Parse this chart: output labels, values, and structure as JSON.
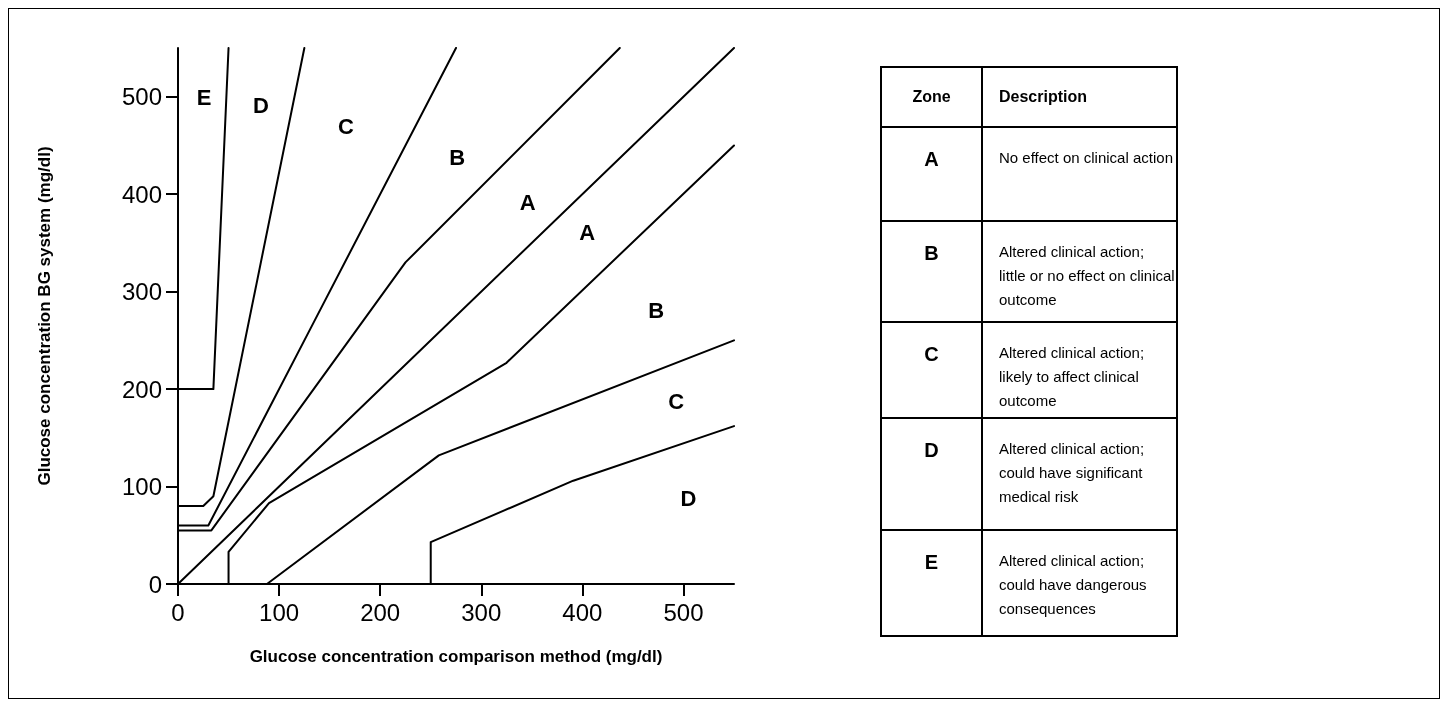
{
  "chart_data": [
    {
      "type": "line",
      "xlabel": "Glucose concentration comparison method (mg/dl)",
      "ylabel": "Glucose concentration BG system (mg/dl)",
      "xlim": [
        0,
        550
      ],
      "ylim": [
        0,
        550
      ],
      "xticks": [
        0,
        100,
        200,
        300,
        400,
        500
      ],
      "yticks": [
        0,
        100,
        200,
        300,
        400,
        500
      ],
      "marker": "none",
      "line_style": "solid",
      "series": [
        {
          "color": "#000000",
          "x": [
            0,
            35,
            50
          ],
          "values": [
            200,
            200,
            550
          ]
        },
        {
          "color": "#000000",
          "x": [
            0,
            25,
            35,
            125
          ],
          "values": [
            80,
            80,
            90,
            550
          ]
        },
        {
          "color": "#000000",
          "x": [
            0,
            30,
            135,
            275
          ],
          "values": [
            60,
            60,
            270,
            550
          ]
        },
        {
          "color": "#000000",
          "x": [
            0,
            33,
            225,
            437
          ],
          "values": [
            55,
            55,
            330,
            550
          ]
        },
        {
          "color": "#000000",
          "x": [
            0,
            550
          ],
          "values": [
            0,
            550
          ]
        },
        {
          "color": "#000000",
          "x": [
            50,
            50,
            90,
            325,
            550
          ],
          "values": [
            0,
            33,
            83,
            227,
            450
          ]
        },
        {
          "color": "#000000",
          "x": [
            88,
            258,
            550
          ],
          "values": [
            0,
            132,
            250
          ]
        },
        {
          "color": "#000000",
          "x": [
            250,
            250,
            391,
            550
          ],
          "values": [
            0,
            43,
            106,
            162
          ]
        }
      ],
      "annotations": [
        "E",
        "D",
        "C",
        "B",
        "A",
        "A",
        "B",
        "C",
        "D"
      ]
    },
    {
      "type": "other",
      "categories": [
        "A",
        "B",
        "C",
        "D",
        "E"
      ],
      "annotations": [
        "Zone",
        "Description",
        "No effect on clinical action",
        "Altered clinical action;\nlittle or no effect on clinical outcome",
        "Altered clinical action;\nlikely to affect clinical outcome",
        "Altered clinical action;\ncould have significant medical risk",
        "Altered clinical action;\ncould have dangerous consequences"
      ]
    }
  ]
}
